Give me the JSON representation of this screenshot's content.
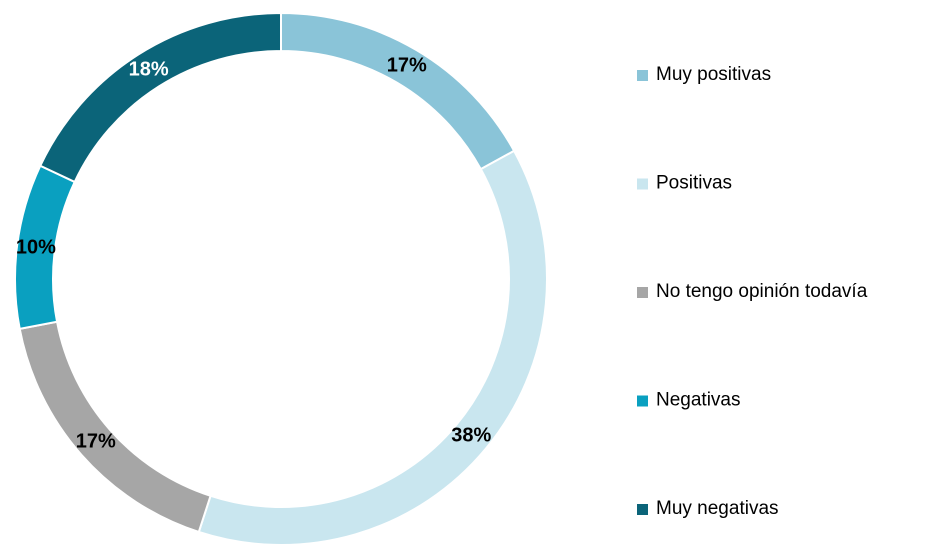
{
  "chart_data": {
    "type": "donut",
    "categories": [
      "Muy positivas",
      "Positivas",
      "No tengo opinión todavía",
      "Negativas",
      "Muy negativas"
    ],
    "values": [
      17,
      38,
      17,
      10,
      18
    ],
    "value_labels": [
      "17%",
      "38%",
      "17%",
      "10%",
      "18%"
    ],
    "colors": [
      "#8ac4d8",
      "#c9e6ef",
      "#a6a6a6",
      "#0aa0c0",
      "#0b6479"
    ],
    "label_colors": [
      "#000000",
      "#000000",
      "#000000",
      "#000000",
      "#ffffff"
    ],
    "legend": "right"
  }
}
